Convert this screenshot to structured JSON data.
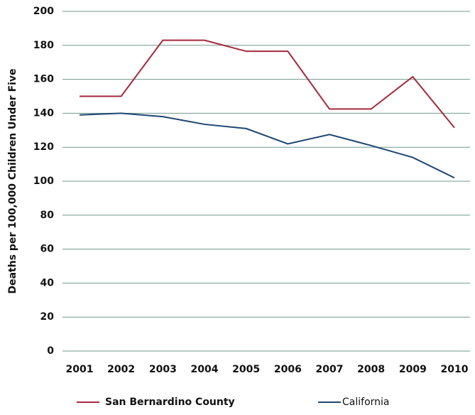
{
  "chart_data": {
    "type": "line",
    "ylabel": "Deaths per 100,000 Children Under Five",
    "x": [
      "2001",
      "2002",
      "2003",
      "2004",
      "2005",
      "2006",
      "2007",
      "2008",
      "2009",
      "2010"
    ],
    "series": [
      {
        "name": "San Bernardino County",
        "color": "#a6273e",
        "values": [
          150,
          150,
          183,
          183,
          176.5,
          176.5,
          142.5,
          142.5,
          161.5,
          131.5
        ]
      },
      {
        "name": "California",
        "color": "#1f4670",
        "values": [
          139,
          140,
          138,
          133.5,
          131,
          122,
          127.5,
          121,
          114,
          102
        ]
      }
    ],
    "ylim": [
      0,
      200
    ],
    "yticks": [
      0,
      20,
      40,
      60,
      80,
      100,
      120,
      140,
      160,
      180,
      200
    ],
    "grid": true
  }
}
